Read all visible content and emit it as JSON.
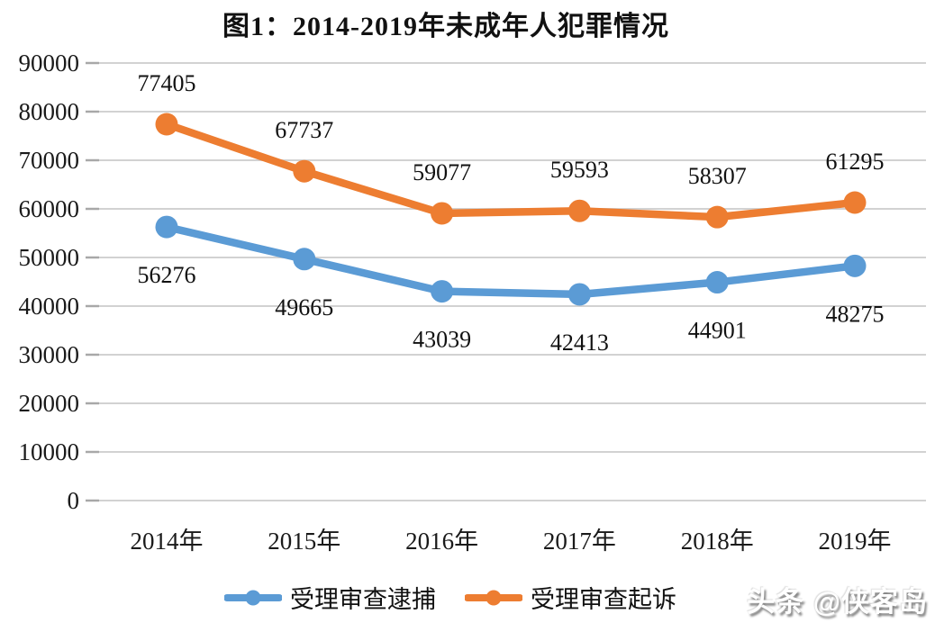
{
  "chart_data": {
    "type": "line",
    "title": "图1：2014-2019年未成年人犯罪情况",
    "categories": [
      "2014年",
      "2015年",
      "2016年",
      "2017年",
      "2018年",
      "2019年"
    ],
    "series": [
      {
        "name": "受理审查逮捕",
        "color": "#5B9BD5",
        "values": [
          56276,
          49665,
          43039,
          42413,
          44901,
          48275
        ],
        "label_position": "below"
      },
      {
        "name": "受理审查起诉",
        "color": "#ED7D31",
        "values": [
          77405,
          67737,
          59077,
          59593,
          58307,
          61295
        ],
        "label_position": "above"
      }
    ],
    "ylim": [
      0,
      90000
    ],
    "ytick_step": 10000,
    "ytick_labels": [
      "0",
      "10000",
      "20000",
      "30000",
      "40000",
      "50000",
      "60000",
      "70000",
      "80000",
      "90000"
    ],
    "grid": "horizontal",
    "legend_position": "bottom"
  },
  "watermark": {
    "text": "头条 @侠客岛"
  }
}
